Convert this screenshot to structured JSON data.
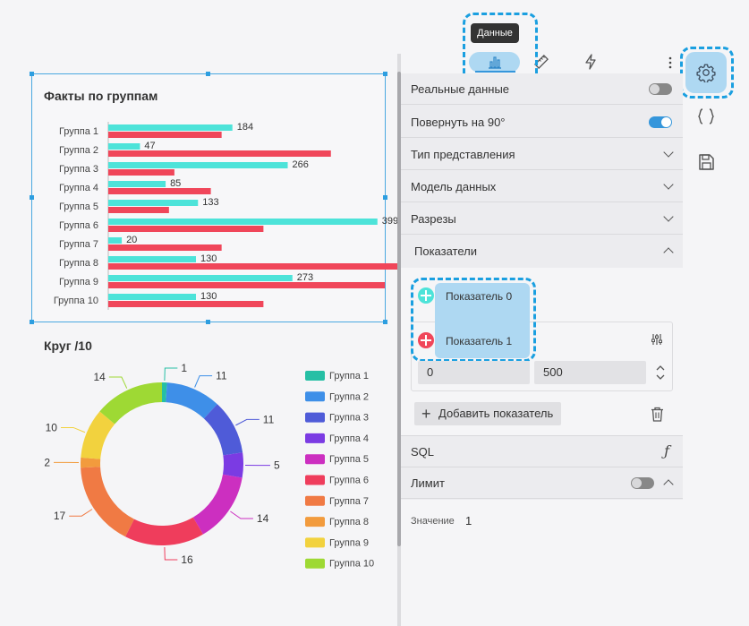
{
  "canvas": {
    "bar_chart_title": "Факты по группам",
    "donut_chart_title": "Круг /10"
  },
  "chart_data": [
    {
      "type": "bar",
      "orientation": "horizontal",
      "title": "Факты по группам",
      "categories": [
        "Группа 1",
        "Группа 2",
        "Группа 3",
        "Группа 4",
        "Группа 5",
        "Группа 6",
        "Группа 7",
        "Группа  8",
        "Группа 9",
        "Группа  10"
      ],
      "series": [
        {
          "color": "#4de3d9",
          "values": [
            184,
            47,
            266,
            85,
            133,
            399,
            20,
            130,
            273,
            130
          ]
        },
        {
          "color": "#f0465a",
          "values": [
            168,
            330,
            98,
            152,
            90,
            230,
            168,
            512,
            410,
            230
          ]
        }
      ],
      "xlim": [
        0,
        520
      ],
      "grid": false,
      "data_labels_series": 0
    },
    {
      "type": "pie",
      "variant": "donut",
      "title": "Круг /10",
      "legend_position": "right",
      "labels": [
        "Группа 1",
        "Группа 2",
        "Группа 3",
        "Группа 4",
        "Группа 5",
        "Группа 6",
        "Группа 7",
        "Группа  8",
        "Группа 9",
        "Группа  10"
      ],
      "colors": [
        "#26bfa5",
        "#3e8fe8",
        "#4f5bd8",
        "#7b3be3",
        "#cc2fc0",
        "#ef3d5c",
        "#f07a44",
        "#f29b3d",
        "#f2d23e",
        "#9ed934"
      ],
      "values": [
        1,
        11,
        11,
        5,
        14,
        16,
        17,
        2,
        10,
        14
      ]
    }
  ],
  "toolbar": {
    "tooltip": "Данные",
    "tabs": [
      {
        "name": "data-tab",
        "icon": "bar-chart-icon"
      },
      {
        "name": "style-tab",
        "icon": "ruler-icon"
      },
      {
        "name": "events-tab",
        "icon": "lightning-icon"
      },
      {
        "name": "more-tab",
        "icon": "more-vertical-icon"
      }
    ]
  },
  "side_icons": [
    "gear-icon",
    "code-braces-icon",
    "save-icon"
  ],
  "settings": {
    "real_data": {
      "label": "Реальные данные",
      "enabled": false
    },
    "rotate_90": {
      "label": "Повернуть на 90°",
      "enabled": true
    },
    "view_type": {
      "label": "Тип представления"
    },
    "data_model": {
      "label": "Модель данных"
    },
    "slices": {
      "label": "Разрезы"
    },
    "metrics": {
      "label": "Показатели",
      "items": [
        {
          "label": "Показатель 0",
          "color": "#4de3d9"
        },
        {
          "label": "Показатель 1",
          "color": "#f0465a"
        }
      ],
      "range_min": "0",
      "range_max": "500",
      "add_label": "Добавить показатель"
    },
    "sql": {
      "label": "SQL"
    },
    "limit": {
      "label": "Лимит",
      "enabled": false,
      "value_label": "Значение",
      "value": "1"
    }
  }
}
